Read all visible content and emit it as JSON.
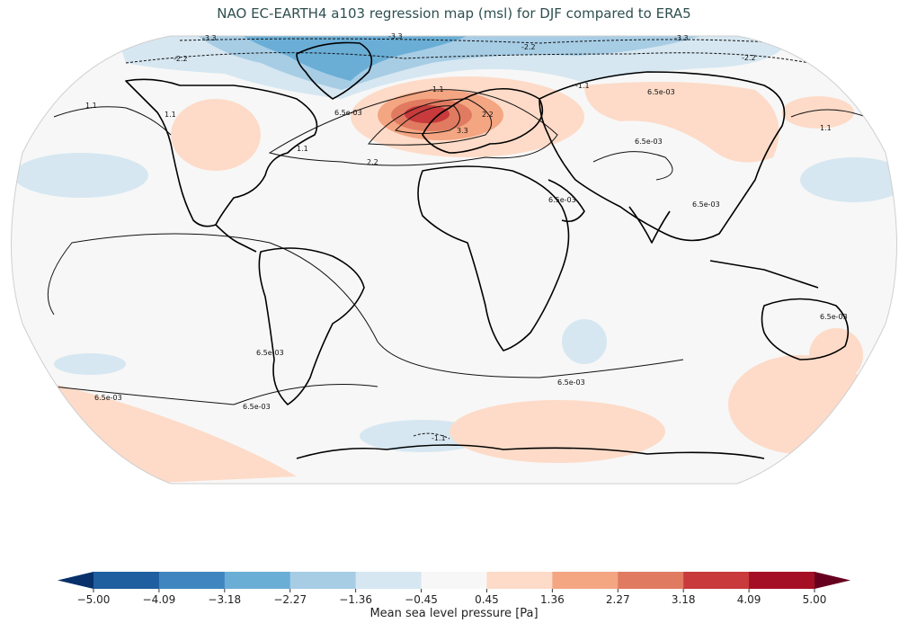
{
  "title": "NAO EC-EARTH4 a103 regression map (msl) for DJF compared to ERA5",
  "colorbar": {
    "label": "Mean sea level pressure [Pa]",
    "ticks": [
      "−5.00",
      "−4.09",
      "−3.18",
      "−2.27",
      "−1.36",
      "−0.45",
      "0.45",
      "1.36",
      "2.27",
      "3.18",
      "4.09",
      "5.00"
    ],
    "colors": [
      "#1f5fa0",
      "#3f86c0",
      "#6aaed6",
      "#a7cde5",
      "#d6e7f1",
      "#f7f7f7",
      "#fddbc8",
      "#f4a582",
      "#e07a60",
      "#c83a3b",
      "#a50f25"
    ],
    "extend_low": "#08306b",
    "extend_high": "#67001f"
  },
  "contour_labels": [
    "-3.3",
    "-3.3",
    "-3.3",
    "-2.2",
    "-2.2",
    "-2.2",
    "-1.1",
    "-1.1",
    "-1.1",
    "1.1",
    "1.1",
    "1.1",
    "1.1",
    "2.2",
    "2.2",
    "3.3",
    "6.5e-03",
    "6.5e-03",
    "6.5e-03",
    "6.5e-03",
    "6.5e-03",
    "6.5e-03",
    "6.5e-03",
    "6.5e-03",
    "6.5e-03",
    "6.5e-03"
  ],
  "map": {
    "projection": "robinson-like",
    "ocean_color": "#f7f7f7",
    "coastline_color": "#000000"
  }
}
